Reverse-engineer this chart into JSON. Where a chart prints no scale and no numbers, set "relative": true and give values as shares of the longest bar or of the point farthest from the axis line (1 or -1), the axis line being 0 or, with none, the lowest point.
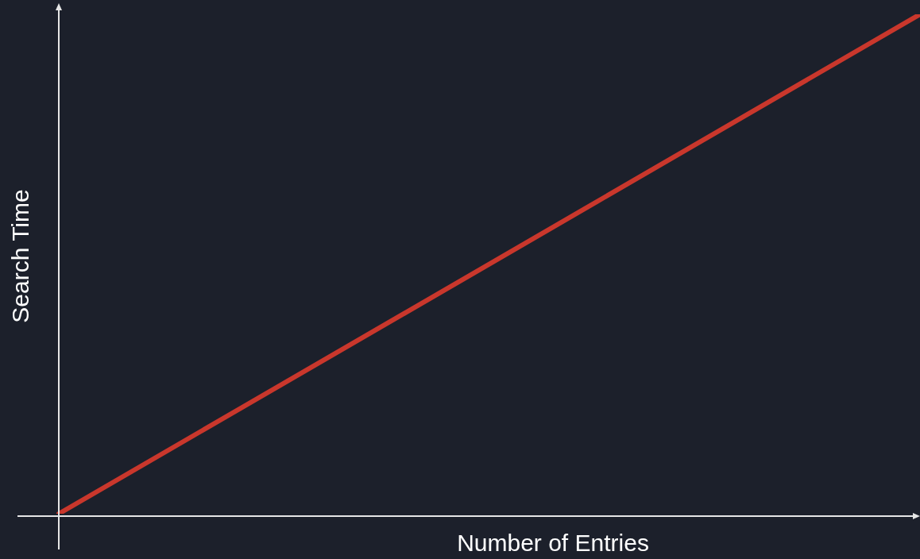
{
  "chart_data": {
    "type": "line",
    "xlabel": "Number of Entries",
    "ylabel": "Search Time",
    "relative": true,
    "categories": [
      null,
      null
    ],
    "series": [
      {
        "color": "#c9372c",
        "values": [
          0,
          1
        ]
      }
    ],
    "marker": "none",
    "legend": false
  }
}
